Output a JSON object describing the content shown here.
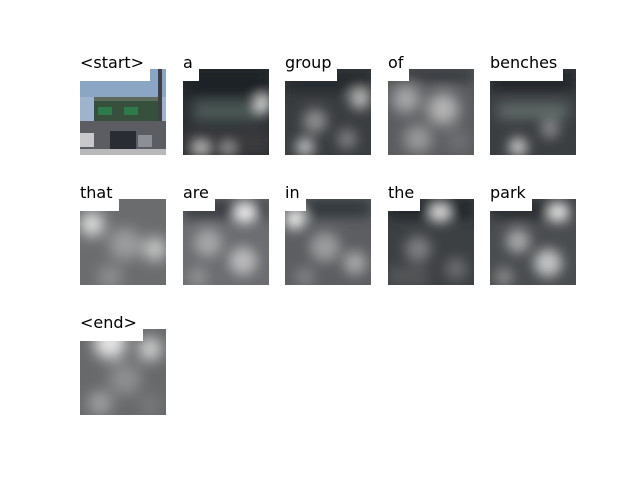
{
  "caption_tokens": [
    "<start>",
    "a",
    "group",
    "of",
    "benches",
    "that",
    "are",
    "in",
    "the",
    "park",
    "<end>"
  ]
}
